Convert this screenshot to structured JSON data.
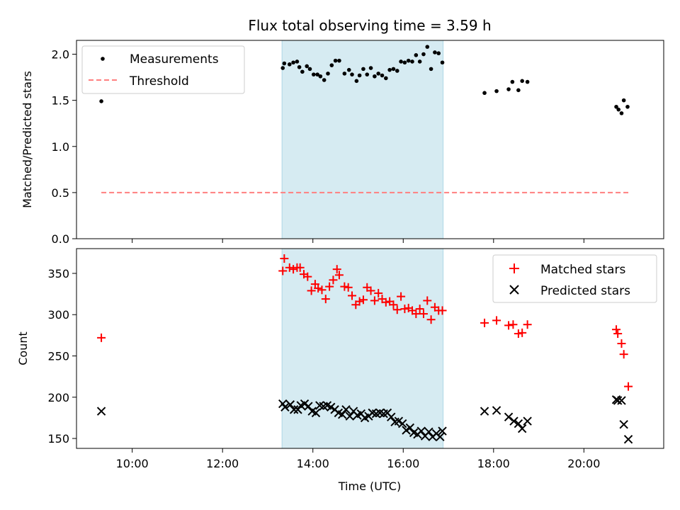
{
  "title": "Flux total observing time = 3.59 h",
  "chart_data": [
    {
      "type": "scatter",
      "ylabel": "Matched/Predicted stars",
      "xlim": [
        "08:46",
        "21:46"
      ],
      "ylim": [
        0,
        2.15
      ],
      "yticks": [
        "0.0",
        "0.5",
        "1.0",
        "1.5",
        "2.0"
      ],
      "ytick_values": [
        0,
        0.5,
        1.0,
        1.5,
        2.0
      ],
      "xtick_values": [
        "10:00",
        "12:00",
        "14:00",
        "16:00",
        "18:00",
        "20:00"
      ],
      "legend": "upper-left",
      "highlight_span": {
        "start": "13:19",
        "end": "16:53",
        "color": "#add8e6"
      },
      "series": [
        {
          "name": "Measurements",
          "marker": "dot",
          "color": "#000000",
          "points": [
            [
              "09:19",
              1.49
            ],
            [
              "13:20",
              1.85
            ],
            [
              "13:22",
              1.9
            ],
            [
              "13:29",
              1.89
            ],
            [
              "13:34",
              1.91
            ],
            [
              "13:39",
              1.92
            ],
            [
              "13:42",
              1.86
            ],
            [
              "13:46",
              1.81
            ],
            [
              "13:52",
              1.87
            ],
            [
              "13:56",
              1.84
            ],
            [
              "14:01",
              1.78
            ],
            [
              "14:06",
              1.78
            ],
            [
              "14:10",
              1.76
            ],
            [
              "14:15",
              1.72
            ],
            [
              "14:20",
              1.79
            ],
            [
              "14:25",
              1.88
            ],
            [
              "14:30",
              1.93
            ],
            [
              "14:35",
              1.93
            ],
            [
              "14:42",
              1.79
            ],
            [
              "14:48",
              1.83
            ],
            [
              "14:52",
              1.78
            ],
            [
              "14:58",
              1.71
            ],
            [
              "15:02",
              1.77
            ],
            [
              "15:07",
              1.84
            ],
            [
              "15:12",
              1.78
            ],
            [
              "15:17",
              1.85
            ],
            [
              "15:22",
              1.76
            ],
            [
              "15:27",
              1.79
            ],
            [
              "15:32",
              1.77
            ],
            [
              "15:37",
              1.74
            ],
            [
              "15:42",
              1.83
            ],
            [
              "15:47",
              1.84
            ],
            [
              "15:52",
              1.82
            ],
            [
              "15:57",
              1.92
            ],
            [
              "16:02",
              1.91
            ],
            [
              "16:07",
              1.93
            ],
            [
              "16:12",
              1.92
            ],
            [
              "16:17",
              1.99
            ],
            [
              "16:22",
              1.92
            ],
            [
              "16:27",
              2.0
            ],
            [
              "16:32",
              2.08
            ],
            [
              "16:37",
              1.84
            ],
            [
              "16:42",
              2.02
            ],
            [
              "16:47",
              2.01
            ],
            [
              "16:52",
              1.91
            ],
            [
              "17:48",
              1.58
            ],
            [
              "18:04",
              1.6
            ],
            [
              "18:20",
              1.62
            ],
            [
              "18:25",
              1.7
            ],
            [
              "18:33",
              1.61
            ],
            [
              "18:38",
              1.71
            ],
            [
              "18:45",
              1.7
            ],
            [
              "20:43",
              1.43
            ],
            [
              "20:46",
              1.4
            ],
            [
              "20:50",
              1.36
            ],
            [
              "20:53",
              1.5
            ],
            [
              "20:58",
              1.43
            ]
          ]
        },
        {
          "name": "Threshold",
          "marker": "dashed-line",
          "color": "#ff7f7f",
          "points": [
            [
              "09:19",
              0.5
            ],
            [
              "20:59",
              0.5
            ]
          ]
        }
      ]
    },
    {
      "type": "scatter",
      "xlabel": "Time (UTC)",
      "ylabel": "Count",
      "xlim": [
        "08:46",
        "21:46"
      ],
      "ylim": [
        138,
        380
      ],
      "yticks": [
        "150",
        "200",
        "250",
        "300",
        "350"
      ],
      "ytick_values": [
        150,
        200,
        250,
        300,
        350
      ],
      "xticks": [
        "10:00",
        "12:00",
        "14:00",
        "16:00",
        "18:00",
        "20:00"
      ],
      "legend": "upper-right",
      "highlight_span": {
        "start": "13:19",
        "end": "16:53",
        "color": "#add8e6"
      },
      "series": [
        {
          "name": "Matched stars",
          "marker": "plus",
          "color": "#ff0000",
          "points": [
            [
              "09:19",
              272
            ],
            [
              "13:20",
              353
            ],
            [
              "13:22",
              368
            ],
            [
              "13:29",
              357
            ],
            [
              "13:34",
              355
            ],
            [
              "13:39",
              357
            ],
            [
              "13:43",
              357
            ],
            [
              "13:48",
              349
            ],
            [
              "13:53",
              346
            ],
            [
              "13:58",
              329
            ],
            [
              "14:03",
              337
            ],
            [
              "14:07",
              332
            ],
            [
              "14:12",
              330
            ],
            [
              "14:17",
              319
            ],
            [
              "14:22",
              334
            ],
            [
              "14:27",
              342
            ],
            [
              "14:32",
              355
            ],
            [
              "14:35",
              348
            ],
            [
              "14:42",
              334
            ],
            [
              "14:47",
              333
            ],
            [
              "14:52",
              323
            ],
            [
              "14:57",
              312
            ],
            [
              "15:02",
              316
            ],
            [
              "15:07",
              318
            ],
            [
              "15:12",
              333
            ],
            [
              "15:17",
              329
            ],
            [
              "15:22",
              317
            ],
            [
              "15:27",
              326
            ],
            [
              "15:32",
              319
            ],
            [
              "15:37",
              315
            ],
            [
              "15:42",
              316
            ],
            [
              "15:47",
              312
            ],
            [
              "15:52",
              306
            ],
            [
              "15:57",
              322
            ],
            [
              "16:02",
              307
            ],
            [
              "16:07",
              308
            ],
            [
              "16:12",
              305
            ],
            [
              "16:17",
              301
            ],
            [
              "16:22",
              307
            ],
            [
              "16:27",
              301
            ],
            [
              "16:32",
              317
            ],
            [
              "16:37",
              294
            ],
            [
              "16:42",
              309
            ],
            [
              "16:47",
              305
            ],
            [
              "16:52",
              305
            ],
            [
              "17:48",
              290
            ],
            [
              "18:04",
              293
            ],
            [
              "18:20",
              287
            ],
            [
              "18:26",
              288
            ],
            [
              "18:33",
              277
            ],
            [
              "18:38",
              278
            ],
            [
              "18:45",
              288
            ],
            [
              "20:43",
              282
            ],
            [
              "20:45",
              277
            ],
            [
              "20:50",
              265
            ],
            [
              "20:53",
              252
            ],
            [
              "20:59",
              213
            ]
          ]
        },
        {
          "name": "Predicted stars",
          "marker": "x",
          "color": "#000000",
          "points": [
            [
              "09:19",
              183
            ],
            [
              "13:20",
              192
            ],
            [
              "13:23",
              188
            ],
            [
              "13:30",
              191
            ],
            [
              "13:35",
              185
            ],
            [
              "13:40",
              185
            ],
            [
              "13:44",
              190
            ],
            [
              "13:49",
              192
            ],
            [
              "13:54",
              189
            ],
            [
              "13:59",
              183
            ],
            [
              "14:04",
              181
            ],
            [
              "14:09",
              190
            ],
            [
              "14:14",
              189
            ],
            [
              "14:19",
              190
            ],
            [
              "14:24",
              188
            ],
            [
              "14:29",
              185
            ],
            [
              "14:34",
              181
            ],
            [
              "14:39",
              179
            ],
            [
              "14:44",
              185
            ],
            [
              "14:49",
              177
            ],
            [
              "14:54",
              183
            ],
            [
              "14:59",
              178
            ],
            [
              "15:04",
              180
            ],
            [
              "15:09",
              175
            ],
            [
              "15:14",
              177
            ],
            [
              "15:19",
              181
            ],
            [
              "15:24",
              180
            ],
            [
              "15:29",
              181
            ],
            [
              "15:34",
              180
            ],
            [
              "15:39",
              181
            ],
            [
              "15:44",
              176
            ],
            [
              "15:49",
              170
            ],
            [
              "15:54",
              171
            ],
            [
              "15:59",
              168
            ],
            [
              "16:04",
              160
            ],
            [
              "16:09",
              163
            ],
            [
              "16:14",
              157
            ],
            [
              "16:19",
              155
            ],
            [
              "16:24",
              159
            ],
            [
              "16:29",
              153
            ],
            [
              "16:34",
              158
            ],
            [
              "16:39",
              152
            ],
            [
              "16:44",
              156
            ],
            [
              "16:49",
              152
            ],
            [
              "16:52",
              159
            ],
            [
              "17:48",
              183
            ],
            [
              "18:04",
              184
            ],
            [
              "18:20",
              176
            ],
            [
              "18:27",
              171
            ],
            [
              "18:33",
              168
            ],
            [
              "18:38",
              162
            ],
            [
              "18:45",
              171
            ],
            [
              "20:43",
              197
            ],
            [
              "20:45",
              196
            ],
            [
              "20:50",
              196
            ],
            [
              "20:53",
              167
            ],
            [
              "20:59",
              149
            ]
          ]
        }
      ]
    }
  ]
}
